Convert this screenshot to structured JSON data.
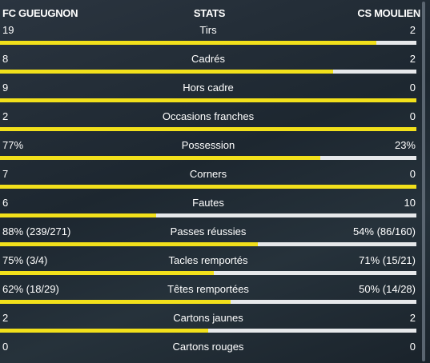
{
  "header": {
    "home": "FC GUEUGNON",
    "title": "STATS",
    "away": "CS MOULIEN"
  },
  "rows": [
    {
      "label": "Tirs",
      "home": 19,
      "away": 2
    },
    {
      "label": "Cadrés",
      "home": 8,
      "away": 2
    },
    {
      "label": "Hors cadre",
      "home": 9,
      "away": 0
    },
    {
      "label": "Occasions franches",
      "home": 2,
      "away": 0
    },
    {
      "label": "Possession",
      "home": 77,
      "home_label": "77%",
      "away": 23,
      "away_label": "23%"
    },
    {
      "label": "Corners",
      "home": 7,
      "away": 0
    },
    {
      "label": "Fautes",
      "home": 6,
      "away": 10
    },
    {
      "label": "Passes réussies",
      "home": 88,
      "home_label": "88% (239/271)",
      "away": 54,
      "away_label": "54% (86/160)"
    },
    {
      "label": "Tacles remportés",
      "home": 75,
      "home_label": "75% (3/4)",
      "away": 71,
      "away_label": "71% (15/21)"
    },
    {
      "label": "Têtes remportées",
      "home": 62,
      "home_label": "62% (18/29)",
      "away": 50,
      "away_label": "50% (14/28)"
    },
    {
      "label": "Cartons jaunes",
      "home": 2,
      "away": 2
    },
    {
      "label": "Cartons rouges",
      "home": 0,
      "away": 0
    }
  ]
}
